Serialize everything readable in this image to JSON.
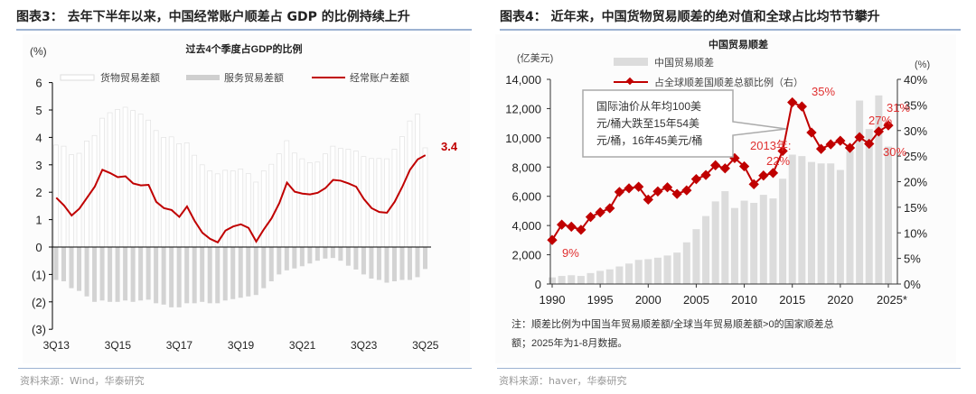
{
  "left": {
    "figure_title": "图表3： 去年下半年以来，中国经常账户顺差占 GDP 的比例持续上升",
    "source": "资料来源：Wind，华泰研究"
  },
  "right": {
    "figure_title": "图表4： 近年来，中国货物贸易顺差的绝对值和全球占比均节节攀升",
    "source": "资料来源：haver，华泰研究",
    "note_line1": "注：顺差比例为中国当年贸易顺差额/全球当年贸易顺差额>0的国家顺差总",
    "note_line2": "额；2025年为1-8月数据。"
  },
  "chart_data": [
    {
      "type": "bar",
      "title": "过去4个季度占GDP的比例",
      "ylabel": "(%)",
      "ylim": [
        -3,
        6
      ],
      "yticks": [
        "6",
        "5",
        "4",
        "3",
        "2",
        "1",
        "0",
        "(1)",
        "(2)",
        "(3)"
      ],
      "xtick_labels": [
        "3Q13",
        "3Q15",
        "3Q17",
        "3Q19",
        "3Q21",
        "3Q23",
        "3Q25"
      ],
      "legend_position": "top",
      "colors": {
        "goods": "#ffffff",
        "services": "#cfcfcf",
        "current": "#c00000"
      },
      "series": [
        {
          "name": "货物贸易差额",
          "type": "bar",
          "values": [
            3.72,
            3.68,
            3.37,
            3.42,
            3.87,
            4.07,
            4.7,
            4.9,
            5.02,
            5.1,
            4.98,
            4.85,
            4.63,
            4.25,
            4.0,
            4.02,
            3.77,
            3.8,
            3.35,
            3.0,
            2.78,
            2.67,
            2.8,
            2.78,
            2.85,
            2.68,
            2.37,
            2.78,
            3.02,
            3.4,
            3.88,
            3.43,
            3.22,
            3.08,
            3.1,
            3.4,
            3.68,
            3.6,
            3.57,
            3.5,
            3.3,
            3.23,
            3.23,
            3.22,
            3.57,
            4.03,
            4.6,
            4.85,
            3.62
          ]
        },
        {
          "name": "服务贸易差额",
          "type": "bar",
          "values": [
            -1.2,
            -1.25,
            -1.5,
            -1.6,
            -1.8,
            -2.0,
            -1.95,
            -2.0,
            -2.0,
            -1.95,
            -2.0,
            -1.95,
            -1.92,
            -2.05,
            -2.1,
            -2.2,
            -2.2,
            -2.05,
            -2.05,
            -2.0,
            -2.05,
            -2.05,
            -1.95,
            -1.9,
            -1.85,
            -1.8,
            -1.75,
            -1.5,
            -1.25,
            -1.0,
            -0.85,
            -0.78,
            -0.7,
            -0.6,
            -0.5,
            -0.42,
            -0.4,
            -0.5,
            -0.68,
            -0.82,
            -1.0,
            -1.15,
            -1.2,
            -1.3,
            -1.25,
            -1.2,
            -1.2,
            -1.1,
            -0.8
          ]
        },
        {
          "name": "经常账户差额",
          "type": "line",
          "values": [
            1.8,
            1.52,
            1.15,
            1.4,
            1.8,
            2.2,
            2.82,
            2.7,
            2.55,
            2.58,
            2.32,
            2.25,
            2.27,
            1.65,
            1.42,
            1.35,
            1.1,
            1.48,
            0.95,
            0.52,
            0.3,
            0.17,
            0.6,
            0.75,
            0.83,
            0.7,
            0.2,
            0.65,
            1.05,
            1.6,
            2.35,
            2.02,
            1.95,
            1.92,
            1.98,
            2.15,
            2.45,
            2.42,
            2.32,
            2.2,
            1.75,
            1.42,
            1.28,
            1.25,
            1.65,
            2.2,
            2.82,
            3.2,
            3.35
          ]
        }
      ],
      "annotations": [
        "3.4"
      ]
    },
    {
      "type": "bar",
      "title": "中国贸易顺差",
      "ylabel": "(亿美元)",
      "y2label": "(%)",
      "ylim": [
        0,
        14000
      ],
      "y2lim": [
        0,
        40
      ],
      "yticks": [
        "0",
        "2,000",
        "4,000",
        "6,000",
        "8,000",
        "10,000",
        "12,000",
        "14,000"
      ],
      "y2ticks": [
        "0%",
        "5%",
        "10%",
        "15%",
        "20%",
        "25%",
        "30%",
        "35%",
        "40%"
      ],
      "xtick_labels": [
        "1990",
        "1995",
        "2000",
        "2005",
        "2010",
        "2015",
        "2020",
        "2025*"
      ],
      "x": [
        1990,
        1991,
        1992,
        1993,
        1994,
        1995,
        1996,
        1997,
        1998,
        1999,
        2000,
        2001,
        2002,
        2003,
        2004,
        2005,
        2006,
        2007,
        2008,
        2009,
        2010,
        2011,
        2012,
        2013,
        2014,
        2015,
        2016,
        2017,
        2018,
        2019,
        2020,
        2021,
        2022,
        2023,
        2024,
        2025
      ],
      "colors": {
        "bar": "#d9d9d9",
        "line": "#c00000",
        "label": "#e03030"
      },
      "series": [
        {
          "name": "中国贸易顺差",
          "type": "bar",
          "values": [
            450,
            550,
            600,
            550,
            750,
            900,
            1000,
            1200,
            1400,
            1650,
            1700,
            1800,
            1950,
            2150,
            2850,
            3750,
            4650,
            5650,
            6350,
            5200,
            5700,
            5550,
            6100,
            5850,
            7200,
            8850,
            8750,
            8350,
            8250,
            8250,
            7800,
            9100,
            12550,
            10600,
            12900,
            9400
          ]
        },
        {
          "name": "占全球顺差国顺差总额比例（右）",
          "type": "line",
          "axis": "right",
          "values": [
            8.6,
            11.6,
            11.2,
            10.6,
            13.1,
            14.0,
            14.8,
            18.0,
            18.7,
            19.0,
            16.5,
            18.1,
            18.9,
            17.6,
            18.3,
            20.5,
            21.3,
            23.2,
            22.6,
            24.6,
            23.0,
            19.5,
            21.2,
            21.7,
            26.0,
            35.5,
            34.7,
            29.6,
            26.4,
            27.3,
            28.0,
            26.6,
            28.7,
            27.4,
            29.8,
            31.0
          ]
        }
      ],
      "annotations": [
        "9%",
        "2013年:",
        "22%",
        "35%",
        "27%",
        "31%",
        "30%"
      ],
      "callout": [
        "国际油价从年均100美",
        "元/桶大跌至15年54美",
        "元/桶，16年45美元/桶"
      ]
    }
  ]
}
